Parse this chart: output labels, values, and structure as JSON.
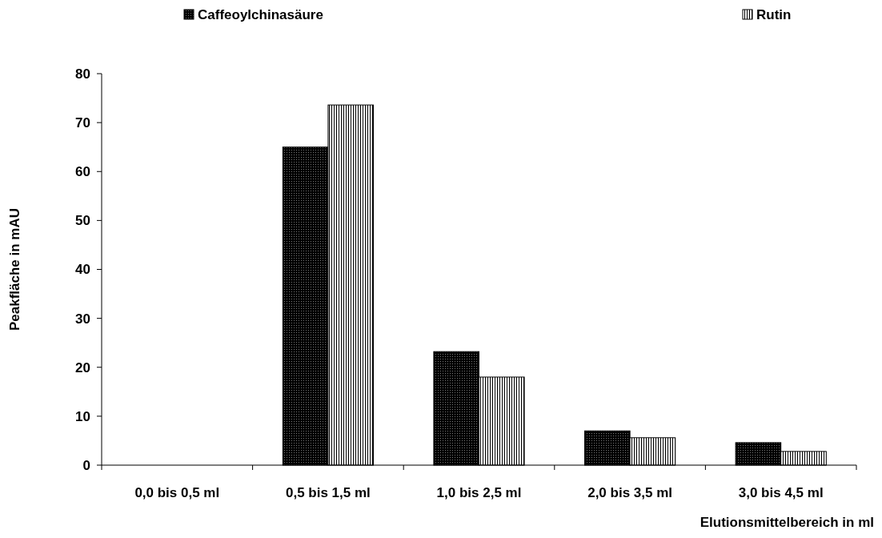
{
  "chart_data": {
    "type": "bar",
    "xlabel": "Elutionsmittelbereich in ml",
    "ylabel": "Peakfläche in mAU",
    "categories": [
      "0,0 bis 0,5 ml",
      "0,5 bis 1,5 ml",
      "1,0 bis 2,5 ml",
      "2,0 bis 3,5 ml",
      "3,0 bis 4,5 ml"
    ],
    "series": [
      {
        "name": "Caffeoylchinasäure",
        "color": "#000000",
        "values": [
          0,
          65.0,
          23.2,
          7.0,
          4.6
        ]
      },
      {
        "name": "Rutin",
        "color": "#000000",
        "values": [
          0,
          73.6,
          18.0,
          5.6,
          2.8
        ]
      }
    ],
    "ylim": [
      0,
      80
    ],
    "yticks": [
      0,
      10,
      20,
      30,
      40,
      50,
      60,
      70,
      80
    ],
    "grid": false,
    "legend": "top"
  }
}
